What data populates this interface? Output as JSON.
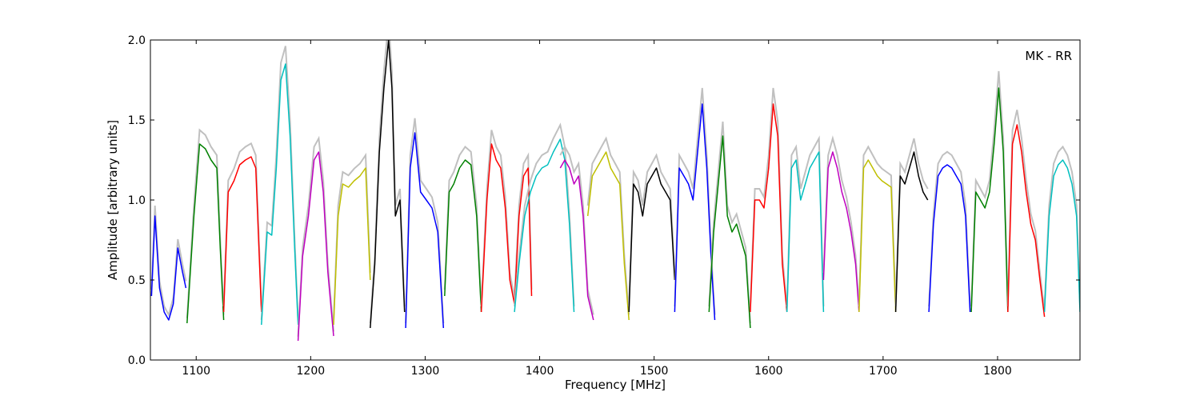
{
  "chart_data": {
    "type": "line",
    "title": "",
    "xlabel": "Frequency [MHz]",
    "ylabel": "Amplitude [arbitrary units]",
    "annotation": "MK - RR",
    "xlim": [
      1060,
      1872
    ],
    "ylim": [
      0.0,
      2.0
    ],
    "xticks": [
      1100,
      1200,
      1300,
      1400,
      1500,
      1600,
      1700,
      1800
    ],
    "yticks": [
      0.0,
      0.5,
      1.0,
      1.5,
      2.0
    ],
    "xtick_labels": [
      "1100",
      "1200",
      "1300",
      "1400",
      "1500",
      "1600",
      "1700",
      "1800"
    ],
    "ytick_labels": [
      "0.0",
      "0.5",
      "1.0",
      "1.5",
      "2.0"
    ],
    "grid": false,
    "legend": "none",
    "series": [
      {
        "color": "#0000ff",
        "x": [
          1061,
          1064,
          1068,
          1072,
          1076,
          1080,
          1084,
          1088,
          1091
        ],
        "y": [
          0.4,
          0.9,
          0.45,
          0.3,
          0.25,
          0.35,
          0.7,
          0.55,
          0.45
        ]
      },
      {
        "color": "#008000",
        "x": [
          1092,
          1098,
          1103,
          1108,
          1113,
          1118,
          1121,
          1124
        ],
        "y": [
          0.23,
          0.9,
          1.35,
          1.32,
          1.25,
          1.2,
          0.7,
          0.25
        ]
      },
      {
        "color": "#ff0000",
        "x": [
          1124,
          1128,
          1133,
          1138,
          1143,
          1148,
          1152,
          1157
        ],
        "y": [
          0.3,
          1.05,
          1.12,
          1.22,
          1.25,
          1.27,
          1.2,
          0.3
        ]
      },
      {
        "color": "#00bfbf",
        "x": [
          1157,
          1162,
          1166,
          1170,
          1174,
          1178,
          1182,
          1186,
          1189
        ],
        "y": [
          0.22,
          0.8,
          0.78,
          1.2,
          1.75,
          1.85,
          1.4,
          0.7,
          0.22
        ]
      },
      {
        "color": "#bf00bf",
        "x": [
          1189,
          1193,
          1198,
          1203,
          1207,
          1211,
          1215,
          1220
        ],
        "y": [
          0.12,
          0.65,
          0.9,
          1.25,
          1.3,
          1.05,
          0.55,
          0.15
        ]
      },
      {
        "color": "#bfbf00",
        "x": [
          1220,
          1224,
          1228,
          1233,
          1238,
          1243,
          1248,
          1252
        ],
        "y": [
          0.22,
          0.9,
          1.1,
          1.08,
          1.12,
          1.15,
          1.2,
          0.5
        ]
      },
      {
        "color": "#000000",
        "x": [
          1252,
          1256,
          1260,
          1264,
          1268,
          1271,
          1274,
          1278,
          1282
        ],
        "y": [
          0.2,
          0.6,
          1.3,
          1.7,
          2.0,
          1.7,
          0.9,
          1.0,
          0.3
        ]
      },
      {
        "color": "#0000ff",
        "x": [
          1283,
          1287,
          1291,
          1296,
          1301,
          1306,
          1311,
          1316
        ],
        "y": [
          0.2,
          1.2,
          1.42,
          1.05,
          1.0,
          0.95,
          0.8,
          0.2
        ]
      },
      {
        "color": "#008000",
        "x": [
          1317,
          1321,
          1325,
          1330,
          1335,
          1340,
          1345,
          1349
        ],
        "y": [
          0.4,
          1.05,
          1.1,
          1.2,
          1.25,
          1.22,
          0.9,
          0.3
        ]
      },
      {
        "color": "#ff0000",
        "x": [
          1349,
          1354,
          1358,
          1362,
          1366,
          1370,
          1374,
          1378,
          1382,
          1386,
          1390,
          1393
        ],
        "y": [
          0.3,
          1.0,
          1.35,
          1.25,
          1.2,
          0.95,
          0.5,
          0.35,
          0.9,
          1.15,
          1.2,
          0.4
        ]
      },
      {
        "color": "#00bfbf",
        "x": [
          1378,
          1382,
          1387,
          1392,
          1397,
          1402,
          1407,
          1412,
          1418,
          1422,
          1426,
          1430
        ],
        "y": [
          0.3,
          0.6,
          0.9,
          1.05,
          1.15,
          1.2,
          1.22,
          1.3,
          1.38,
          1.25,
          0.85,
          0.3
        ]
      },
      {
        "color": "#bf00bf",
        "x": [
          1418,
          1422,
          1426,
          1430,
          1434,
          1438,
          1442,
          1447
        ],
        "y": [
          1.2,
          1.25,
          1.2,
          1.1,
          1.15,
          0.9,
          0.4,
          0.25
        ]
      },
      {
        "color": "#bfbf00",
        "x": [
          1442,
          1446,
          1450,
          1454,
          1458,
          1462,
          1466,
          1470,
          1474,
          1478
        ],
        "y": [
          0.9,
          1.15,
          1.2,
          1.25,
          1.3,
          1.2,
          1.15,
          1.1,
          0.6,
          0.25
        ]
      },
      {
        "color": "#000000",
        "x": [
          1478,
          1482,
          1486,
          1490,
          1494,
          1498,
          1502,
          1506,
          1510,
          1514,
          1518
        ],
        "y": [
          0.3,
          1.1,
          1.05,
          0.9,
          1.1,
          1.15,
          1.2,
          1.1,
          1.05,
          1.0,
          0.5
        ]
      },
      {
        "color": "#0000ff",
        "x": [
          1518,
          1522,
          1526,
          1530,
          1534,
          1538,
          1542,
          1546,
          1550,
          1553
        ],
        "y": [
          0.3,
          1.2,
          1.15,
          1.1,
          1.0,
          1.3,
          1.6,
          1.2,
          0.6,
          0.25
        ]
      },
      {
        "color": "#008000",
        "x": [
          1548,
          1552,
          1556,
          1560,
          1564,
          1568,
          1572,
          1576,
          1580,
          1584
        ],
        "y": [
          0.3,
          0.8,
          1.1,
          1.4,
          0.9,
          0.8,
          0.85,
          0.75,
          0.65,
          0.2
        ]
      },
      {
        "color": "#ff0000",
        "x": [
          1584,
          1588,
          1592,
          1596,
          1600,
          1604,
          1608,
          1612,
          1616
        ],
        "y": [
          0.3,
          1.0,
          1.0,
          0.95,
          1.2,
          1.6,
          1.4,
          0.6,
          0.3
        ]
      },
      {
        "color": "#00bfbf",
        "x": [
          1616,
          1620,
          1624,
          1628,
          1632,
          1636,
          1640,
          1644,
          1648
        ],
        "y": [
          0.3,
          1.2,
          1.25,
          1.0,
          1.1,
          1.2,
          1.25,
          1.3,
          0.3
        ]
      },
      {
        "color": "#bf00bf",
        "x": [
          1648,
          1652,
          1656,
          1660,
          1664,
          1668,
          1672,
          1676,
          1679
        ],
        "y": [
          0.5,
          1.2,
          1.3,
          1.2,
          1.05,
          0.95,
          0.8,
          0.6,
          0.3
        ]
      },
      {
        "color": "#bfbf00",
        "x": [
          1679,
          1683,
          1687,
          1691,
          1695,
          1699,
          1703,
          1707,
          1711
        ],
        "y": [
          0.3,
          1.2,
          1.25,
          1.2,
          1.15,
          1.12,
          1.1,
          1.08,
          0.3
        ]
      },
      {
        "color": "#000000",
        "x": [
          1711,
          1715,
          1719,
          1723,
          1727,
          1731,
          1735,
          1739
        ],
        "y": [
          0.3,
          1.15,
          1.1,
          1.2,
          1.3,
          1.15,
          1.05,
          1.0
        ]
      },
      {
        "color": "#0000ff",
        "x": [
          1740,
          1744,
          1748,
          1752,
          1756,
          1760,
          1764,
          1768,
          1772,
          1776
        ],
        "y": [
          0.3,
          0.85,
          1.15,
          1.2,
          1.22,
          1.2,
          1.15,
          1.1,
          0.9,
          0.3
        ]
      },
      {
        "color": "#008000",
        "x": [
          1777,
          1781,
          1785,
          1789,
          1793,
          1797,
          1801,
          1805,
          1809
        ],
        "y": [
          0.3,
          1.05,
          1.0,
          0.95,
          1.05,
          1.35,
          1.7,
          1.3,
          0.3
        ]
      },
      {
        "color": "#ff0000",
        "x": [
          1809,
          1813,
          1817,
          1821,
          1825,
          1829,
          1833,
          1837,
          1841
        ],
        "y": [
          0.3,
          1.35,
          1.47,
          1.3,
          1.05,
          0.85,
          0.75,
          0.5,
          0.27
        ]
      },
      {
        "color": "#00bfbf",
        "x": [
          1841,
          1845,
          1849,
          1853,
          1857,
          1861,
          1865,
          1869,
          1872
        ],
        "y": [
          0.3,
          0.9,
          1.15,
          1.22,
          1.25,
          1.2,
          1.1,
          0.9,
          0.3
        ]
      }
    ]
  }
}
